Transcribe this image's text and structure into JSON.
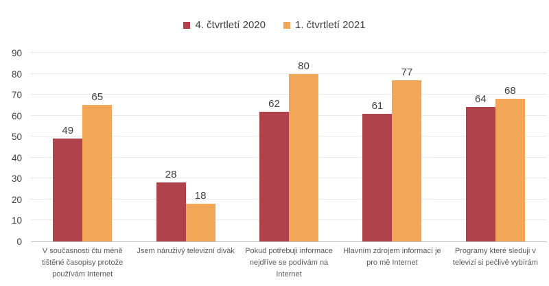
{
  "chart_data": {
    "type": "bar",
    "title": "",
    "categories": [
      "V současnosti čtu méně tištěné časopisy protože používám Internet",
      "Jsem náruživý televizní divák",
      "Pokud potřebuji informace nejdříve se podívám na Internet",
      "Hlavním zdrojem informací je pro mě Internet",
      "Programy které sleduji v televizi si pečlivě vybírám"
    ],
    "series": [
      {
        "name": "4. čtvrtletí 2020",
        "color": "#AF424B",
        "values": [
          49,
          28,
          62,
          61,
          64
        ]
      },
      {
        "name": "1. čtvrtletí 2021",
        "color": "#F1A757",
        "values": [
          65,
          18,
          80,
          77,
          68
        ]
      }
    ],
    "ylim": [
      0,
      90
    ],
    "ytick_step": 10,
    "y_tick_labels": [
      "0",
      "10",
      "20",
      "30",
      "40",
      "50",
      "60",
      "70",
      "80",
      "90"
    ],
    "grid": true,
    "legend_position": "top",
    "xlabel": "",
    "ylabel": ""
  },
  "colors": {
    "background": "#FFFFFF",
    "gridline": "#E9E9E9",
    "axis_line": "#BFBFBF",
    "value_label_text": "#3F3F3F",
    "tick_label_text": "#404040",
    "category_label_text": "#595959",
    "series_1": "#AF424B",
    "series_2": "#F1A757"
  }
}
